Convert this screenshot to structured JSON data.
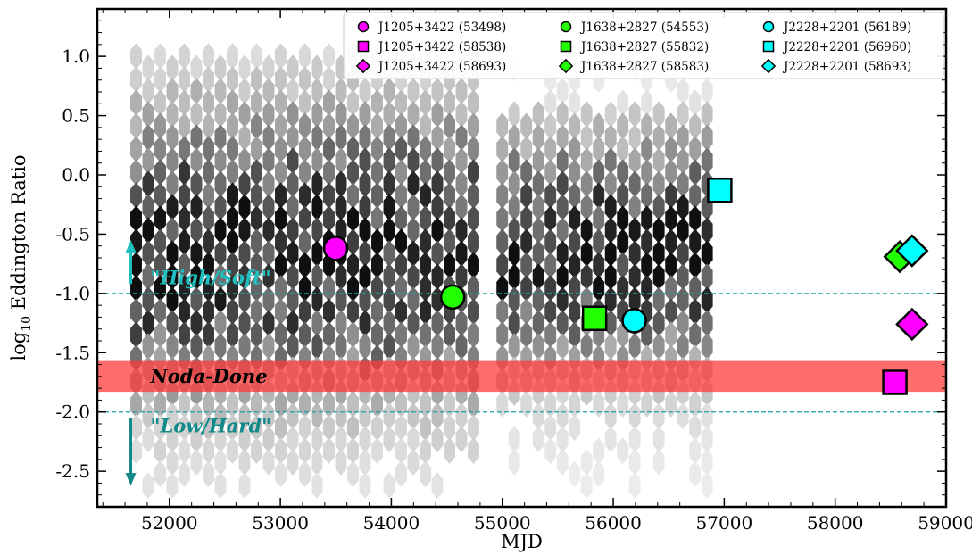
{
  "chart_data": {
    "type": "scatter",
    "xlabel": "MJD",
    "ylabel_main": "log",
    "ylabel_sub": "10",
    "ylabel_rest": " Eddington Ratio",
    "xlim": [
      51350,
      59000
    ],
    "ylim": [
      -2.8,
      1.4
    ],
    "xticks": [
      52000,
      53000,
      54000,
      55000,
      56000,
      57000,
      58000,
      59000
    ],
    "yticks": [
      1.0,
      0.5,
      0.0,
      -0.5,
      -1.0,
      -1.5,
      -2.0,
      -2.5
    ],
    "ytick_labels": [
      "1.0",
      "0.5",
      "0.0",
      "-0.5",
      "-1.0",
      "-1.5",
      "-2.0",
      "-2.5"
    ],
    "grid": false,
    "legend_position": "top-right",
    "background_density": {
      "description_colors": "grey hexbin density",
      "x_ranges": [
        [
          51700,
          54800
        ],
        [
          55000,
          56900
        ]
      ],
      "y_range": [
        -2.7,
        1.0
      ]
    },
    "reference_lines": [
      {
        "y": -1.0,
        "color": "#1aa3a3"
      },
      {
        "y": -2.0,
        "color": "#1aa3a3"
      }
    ],
    "band": {
      "y_range": [
        -1.83,
        -1.57
      ],
      "color": "#ff3b3b",
      "label": "Noda-Done"
    },
    "annotations": [
      {
        "text": "\"High/Soft\"",
        "x": 51700,
        "y": -0.87,
        "color": "#20c0c0",
        "arrow": "up",
        "arrow_from": -0.92,
        "arrow_to": -0.55
      },
      {
        "text": "\"Low/Hard\"",
        "x": 51700,
        "y": -2.12,
        "color": "#138a8a",
        "arrow": "down",
        "arrow_from": -2.05,
        "arrow_to": -2.62
      }
    ],
    "series": [
      {
        "name": "J1205+3422 (53498)",
        "marker": "circle",
        "color": "#ff00ff",
        "x": 53498,
        "y": -0.62
      },
      {
        "name": "J1205+3422 (58538)",
        "marker": "square",
        "color": "#ff00ff",
        "x": 58538,
        "y": -1.75
      },
      {
        "name": "J1205+3422 (58693)",
        "marker": "diamond",
        "color": "#ff00ff",
        "x": 58693,
        "y": -1.26
      },
      {
        "name": "J1638+2827 (54553)",
        "marker": "circle",
        "color": "#22ff00",
        "x": 54553,
        "y": -1.03
      },
      {
        "name": "J1638+2827 (55832)",
        "marker": "square",
        "color": "#22ff00",
        "x": 55832,
        "y": -1.21
      },
      {
        "name": "J1638+2827 (58583)",
        "marker": "diamond",
        "color": "#22ff00",
        "x": 58583,
        "y": -0.69
      },
      {
        "name": "J2228+2201 (56189)",
        "marker": "circle",
        "color": "#00ffff",
        "x": 56189,
        "y": -1.23
      },
      {
        "name": "J2228+2201 (56960)",
        "marker": "square",
        "color": "#00ffff",
        "x": 56960,
        "y": -0.13
      },
      {
        "name": "J2228+2201 (58693)",
        "marker": "diamond",
        "color": "#00ffff",
        "x": 58693,
        "y": -0.64
      }
    ]
  }
}
